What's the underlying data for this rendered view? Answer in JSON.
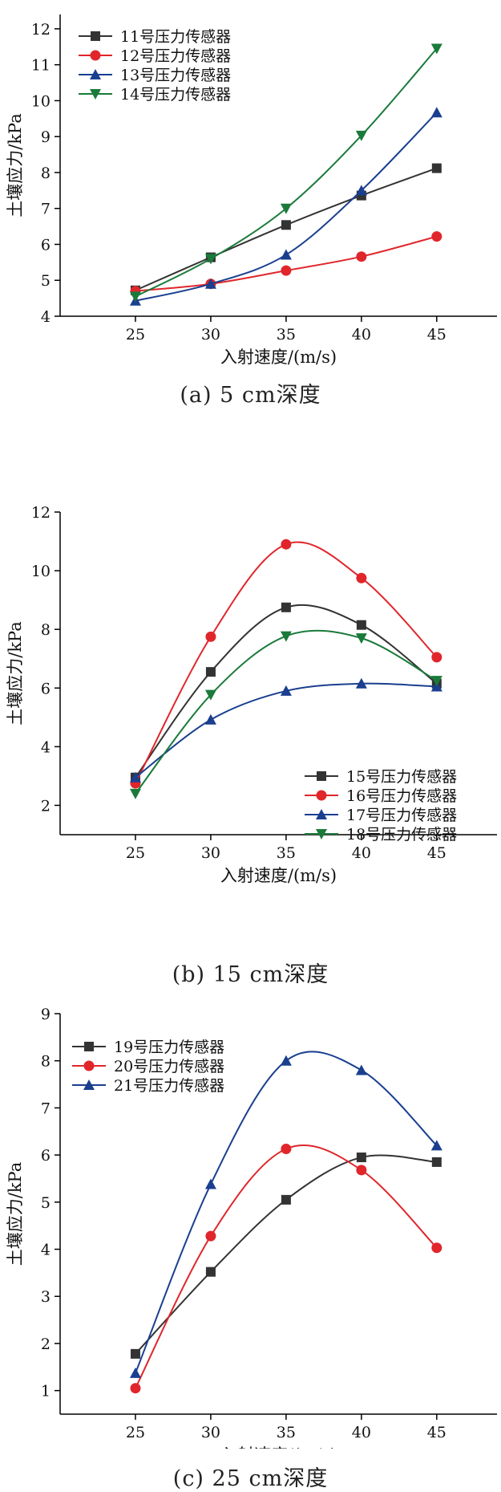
{
  "chart_data": [
    {
      "type": "line",
      "caption": "(a) 5 cm深度",
      "xlabel": "入射速度/(m/s)",
      "ylabel": "土壤应力/kPa",
      "categories": [
        25,
        30,
        35,
        40,
        45
      ],
      "xlim": [
        20,
        49
      ],
      "ylim": [
        4,
        12.4
      ],
      "yticks": [
        4,
        5,
        6,
        7,
        8,
        9,
        10,
        11,
        12
      ],
      "legend_position": "top-left",
      "series": [
        {
          "name": "11号压力传感器",
          "color": "#333333",
          "marker": "square",
          "values": [
            4.72,
            5.64,
            6.54,
            7.36,
            8.12
          ]
        },
        {
          "name": "12号压力传感器",
          "color": "#e0262b",
          "marker": "circle",
          "values": [
            4.7,
            4.9,
            5.27,
            5.66,
            6.22
          ]
        },
        {
          "name": "13号压力传感器",
          "color": "#1a3f8f",
          "marker": "triangle-up",
          "values": [
            4.43,
            4.9,
            5.71,
            7.5,
            9.67
          ]
        },
        {
          "name": "14号压力传感器",
          "color": "#1a7a3a",
          "marker": "triangle-down",
          "values": [
            4.55,
            5.6,
            7.0,
            9.03,
            11.45
          ]
        }
      ]
    },
    {
      "type": "line",
      "caption": "(b) 15 cm深度",
      "xlabel": "入射速度/(m/s)",
      "ylabel": "土壤应力/kPa",
      "categories": [
        25,
        30,
        35,
        40,
        45
      ],
      "xlim": [
        20,
        49
      ],
      "ylim": [
        1,
        12
      ],
      "yticks": [
        2,
        4,
        6,
        8,
        10,
        12
      ],
      "legend_position": "bottom-right",
      "series": [
        {
          "name": "15号压力传感器",
          "color": "#333333",
          "marker": "square",
          "values": [
            2.95,
            6.55,
            8.75,
            8.15,
            6.15
          ]
        },
        {
          "name": "16号压力传感器",
          "color": "#e0262b",
          "marker": "circle",
          "values": [
            2.75,
            7.75,
            10.9,
            9.75,
            7.05
          ]
        },
        {
          "name": "17号压力传感器",
          "color": "#1a3f8f",
          "marker": "triangle-up",
          "values": [
            2.95,
            4.92,
            5.9,
            6.15,
            6.05
          ]
        },
        {
          "name": "18号压力传感器",
          "color": "#1a7a3a",
          "marker": "triangle-down",
          "values": [
            2.4,
            5.77,
            7.77,
            7.7,
            6.25
          ]
        }
      ]
    },
    {
      "type": "line",
      "caption": "(c) 25 cm深度",
      "xlabel": "入射速度/(m/s)",
      "ylabel": "土壤应力/kPa",
      "categories": [
        25,
        30,
        35,
        40,
        45
      ],
      "xlim": [
        20,
        49
      ],
      "ylim": [
        0.5,
        9
      ],
      "yticks": [
        1,
        2,
        3,
        4,
        5,
        6,
        7,
        8,
        9
      ],
      "legend_position": "top-left",
      "series": [
        {
          "name": "19号压力传感器",
          "color": "#333333",
          "marker": "square",
          "values": [
            1.78,
            3.52,
            5.05,
            5.95,
            5.85
          ]
        },
        {
          "name": "20号压力传感器",
          "color": "#e0262b",
          "marker": "circle",
          "values": [
            1.05,
            4.28,
            6.13,
            5.68,
            4.03
          ]
        },
        {
          "name": "21号压力传感器",
          "color": "#1a3f8f",
          "marker": "triangle-up",
          "values": [
            1.37,
            5.38,
            8.0,
            7.8,
            6.2
          ]
        }
      ]
    }
  ]
}
